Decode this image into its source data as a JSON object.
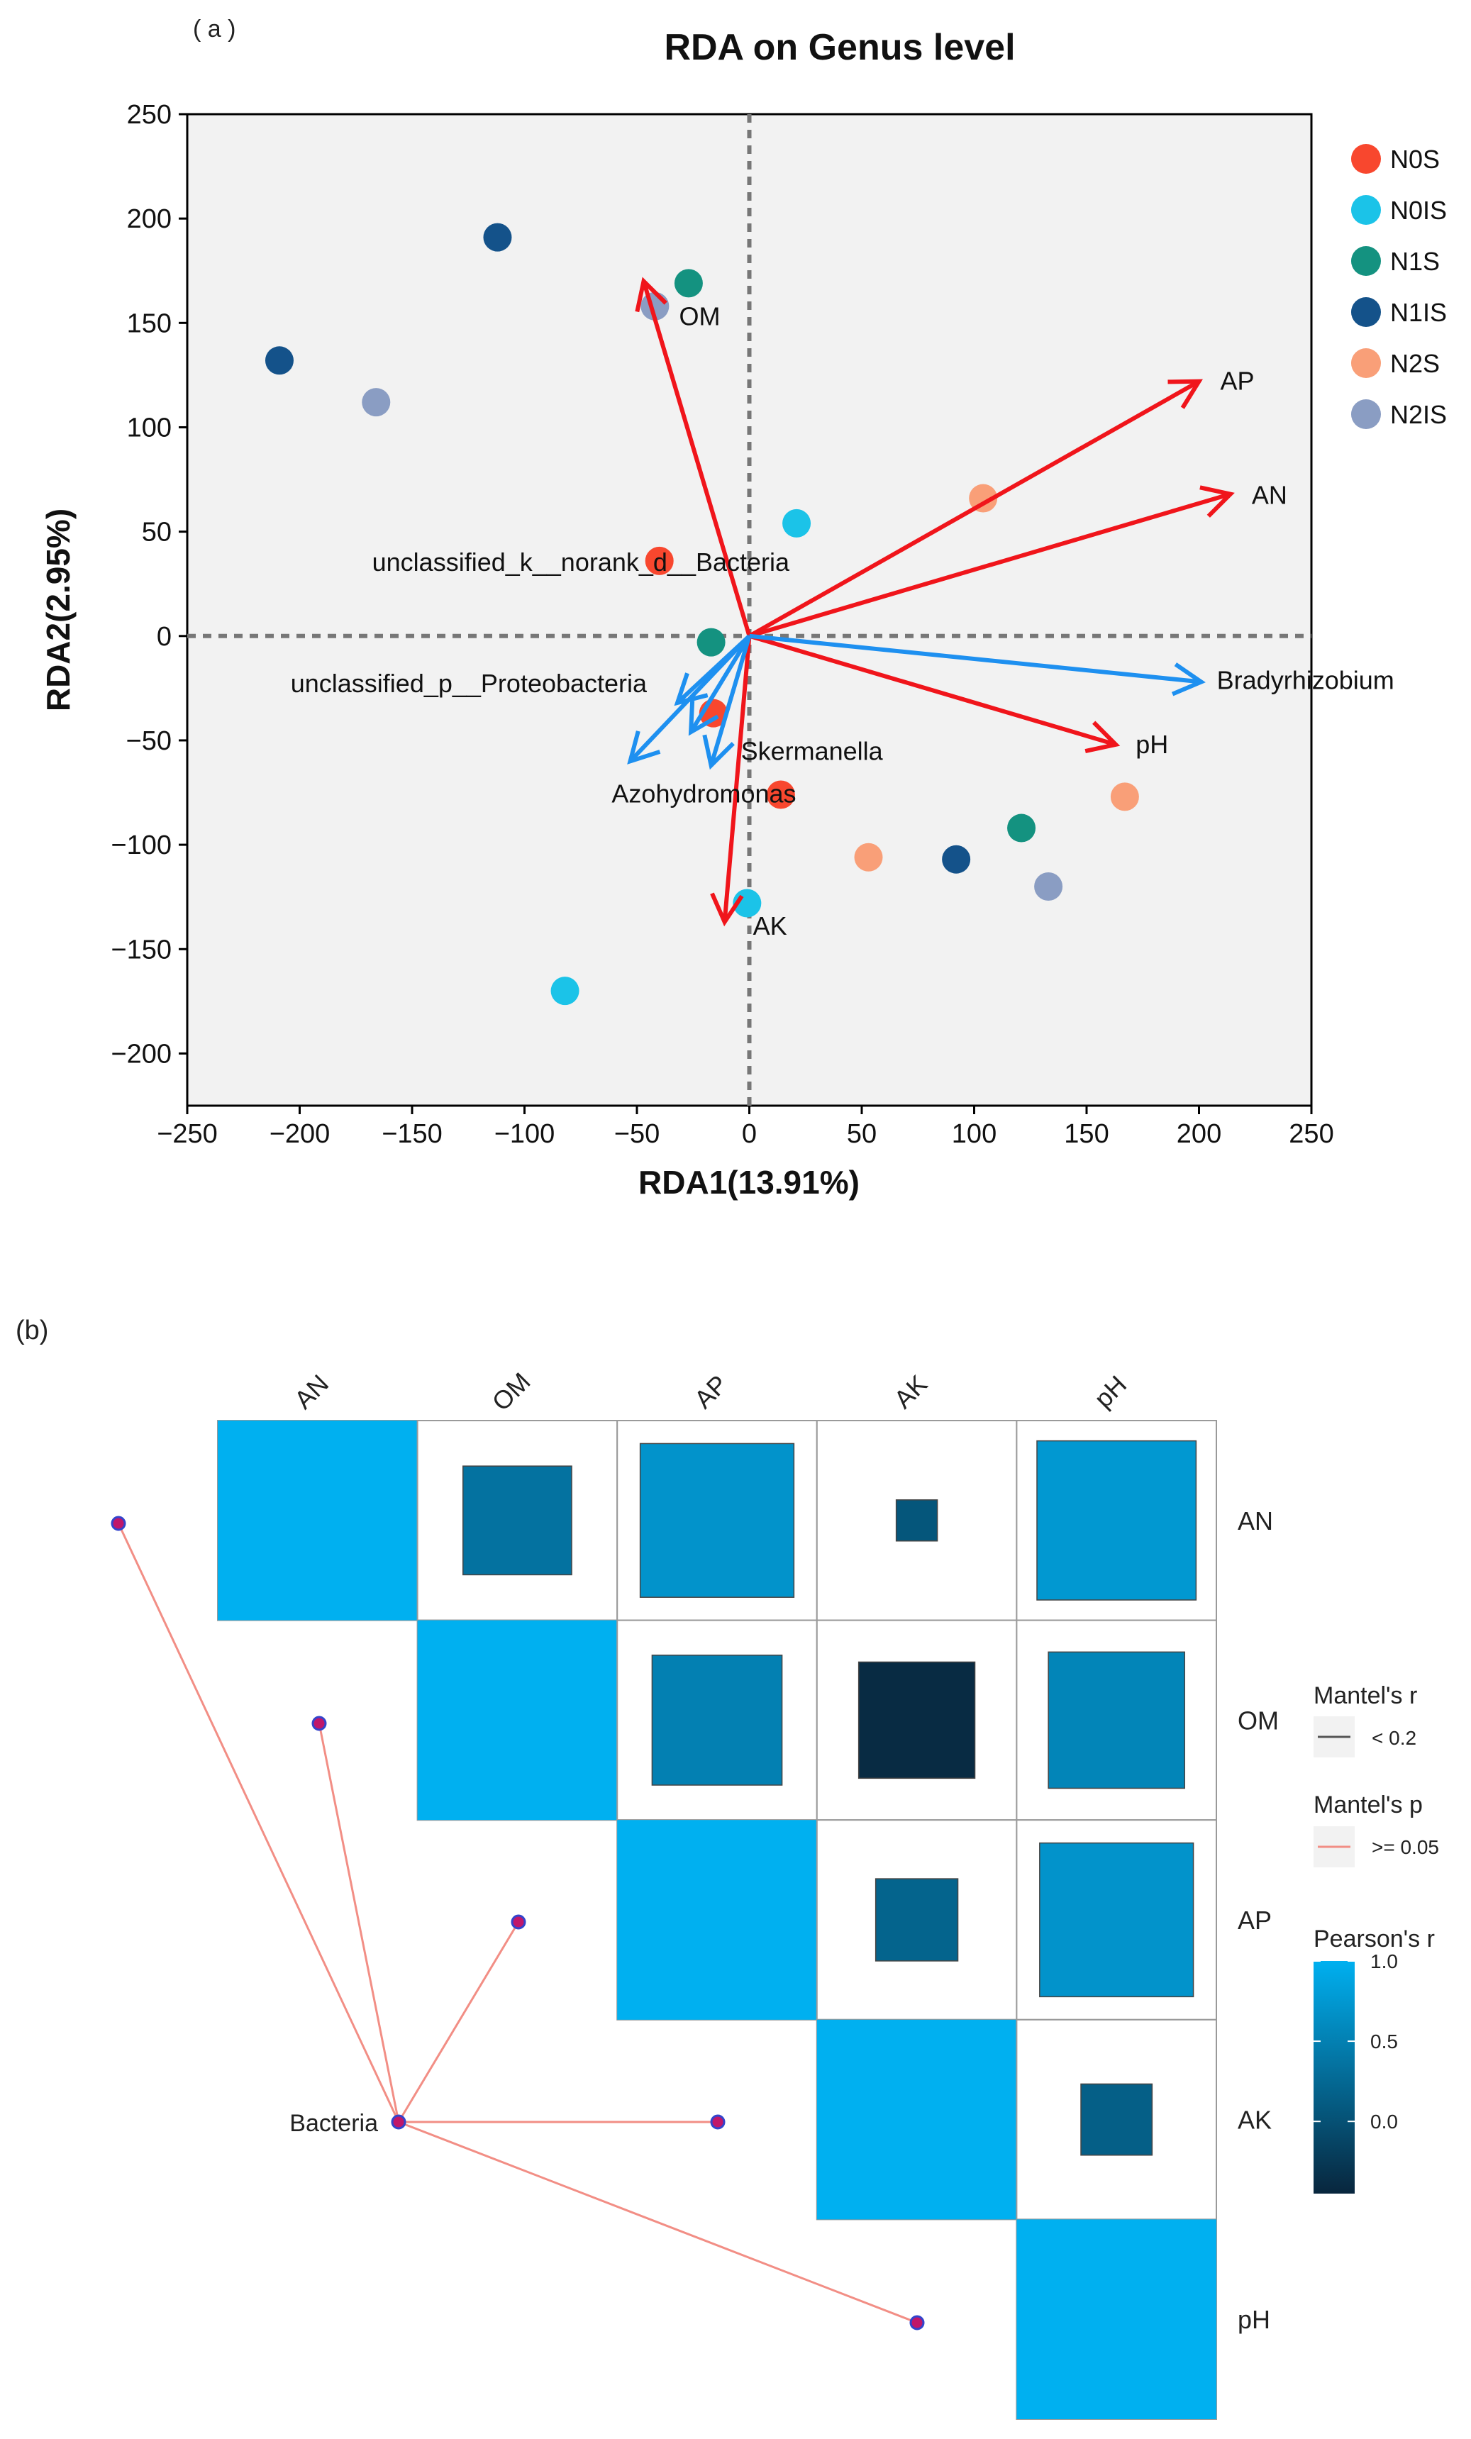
{
  "panel_a": {
    "label": "( a )",
    "chart_data": {
      "type": "scatter",
      "title": "RDA on Genus level",
      "xlabel": "RDA1(13.91%)",
      "ylabel": "RDA2(2.95%)",
      "xlim": [
        -250,
        250
      ],
      "ylim": [
        -225,
        250
      ],
      "xticks": [
        -250,
        -200,
        -150,
        -100,
        -50,
        0,
        50,
        100,
        150,
        200,
        250
      ],
      "yticks": [
        -200,
        -150,
        -100,
        -50,
        0,
        50,
        100,
        150,
        200,
        250
      ],
      "grid": false,
      "legend_position": "right",
      "series": [
        {
          "name": "N0S",
          "color": "#F8472E",
          "points": [
            [
              -40,
              36
            ],
            [
              -16,
              -37
            ],
            [
              14,
              -76
            ]
          ]
        },
        {
          "name": "N0IS",
          "color": "#1BC3E8",
          "points": [
            [
              21,
              54
            ],
            [
              -82,
              -170
            ],
            [
              -1,
              -128
            ]
          ]
        },
        {
          "name": "N1S",
          "color": "#149280",
          "points": [
            [
              -27,
              169
            ],
            [
              -17,
              -3
            ],
            [
              121,
              -92
            ]
          ]
        },
        {
          "name": "N1IS",
          "color": "#14528A",
          "points": [
            [
              -112,
              191
            ],
            [
              -209,
              132
            ],
            [
              92,
              -107
            ]
          ]
        },
        {
          "name": "N2S",
          "color": "#F99F78",
          "points": [
            [
              104,
              66
            ],
            [
              53,
              -106
            ],
            [
              167,
              -77
            ]
          ]
        },
        {
          "name": "N2IS",
          "color": "#8A9DC3",
          "points": [
            [
              -42,
              158
            ],
            [
              -166,
              112
            ],
            [
              133,
              -120
            ]
          ]
        }
      ],
      "env_arrows": [
        {
          "label": "OM",
          "x": -47,
          "y": 170
        },
        {
          "label": "AP",
          "x": 200,
          "y": 122
        },
        {
          "label": "AN",
          "x": 214,
          "y": 68
        },
        {
          "label": "pH",
          "x": 163,
          "y": -52
        },
        {
          "label": "AK",
          "x": -11,
          "y": -137
        }
      ],
      "species_arrows": [
        {
          "label": "Bradyrhizobium",
          "x": 201,
          "y": -22
        },
        {
          "label": "Azohydromonas",
          "x": -53,
          "y": -60
        },
        {
          "label": "Skermanella",
          "x": -17,
          "y": -62
        },
        {
          "label": "unclassified_p__Proteobacteria",
          "x": -26,
          "y": -46
        },
        {
          "label": "unclassified_k__norank_d__Bacteria",
          "x": -32,
          "y": -32
        }
      ]
    }
  },
  "panel_b": {
    "label": "(b)",
    "chart_data": {
      "type": "heatmap",
      "variables": [
        "AN",
        "OM",
        "AP",
        "AK",
        "pH"
      ],
      "pearson_r": [
        [
          1.0,
          0.35,
          0.7,
          0.05,
          0.75
        ],
        [
          0.35,
          1.0,
          0.5,
          -0.4,
          0.55
        ],
        [
          0.7,
          0.5,
          1.0,
          0.2,
          0.7
        ],
        [
          0.05,
          -0.4,
          0.2,
          1.0,
          0.15
        ],
        [
          0.75,
          0.55,
          0.7,
          0.15,
          1.0
        ]
      ],
      "mantel_source": "Bacteria",
      "mantel_links": [
        {
          "target": "AN",
          "r_class": "< 0.2",
          "p_class": ">= 0.05"
        },
        {
          "target": "OM",
          "r_class": "< 0.2",
          "p_class": ">= 0.05"
        },
        {
          "target": "AP",
          "r_class": "< 0.2",
          "p_class": ">= 0.05"
        },
        {
          "target": "AK",
          "r_class": "< 0.2",
          "p_class": ">= 0.05"
        },
        {
          "target": "pH",
          "r_class": "< 0.2",
          "p_class": ">= 0.05"
        }
      ],
      "legend": {
        "mantel_r_title": "Mantel's r",
        "mantel_r_item": "< 0.2",
        "mantel_p_title": "Mantel's p",
        "mantel_p_item": ">= 0.05",
        "pearson_title": "Pearson's r",
        "pearson_ticks": [
          1.0,
          0.5,
          0.0
        ],
        "pearson_tick_labels": [
          "1.0",
          "0.5",
          "0.0"
        ],
        "pearson_range": [
          -0.45,
          1.0
        ]
      }
    }
  },
  "colors": {
    "env_arrow": "#F0151B",
    "species_arrow": "#1E90F0",
    "mantel_line": "#F28E85",
    "node_fill": "#C0176A",
    "node_stroke": "#3344CC",
    "heat_low": "#08263D",
    "heat_high": "#00B0F0"
  }
}
